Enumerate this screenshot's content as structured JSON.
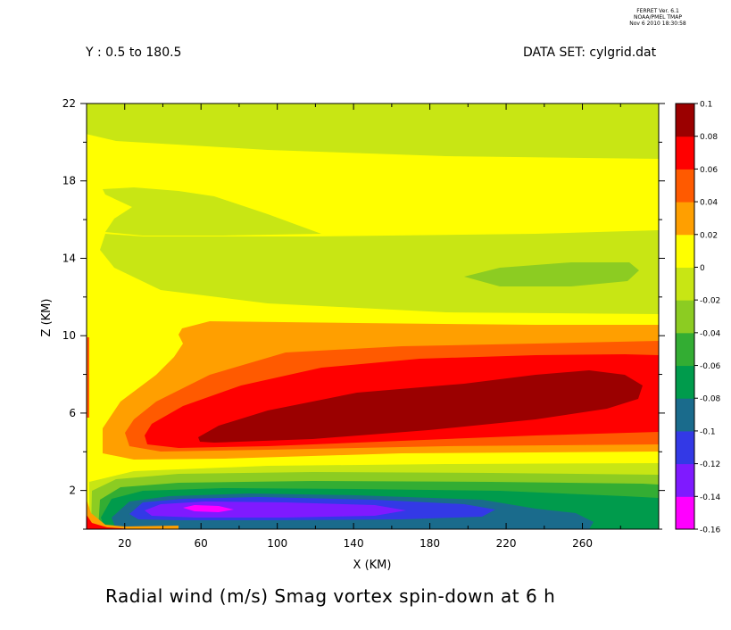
{
  "header": {
    "version_lines": [
      "FERRET Ver. 6.1",
      "NOAA/PMEL TMAP",
      "Nov  6 2010 18:30:58"
    ],
    "slice": "Y : 0.5 to 180.5",
    "dataset": "DATA SET: cylgrid.dat"
  },
  "chart_data": {
    "type": "contourf",
    "title": "Radial wind (m/s) Smag vortex spin-down at 6 h",
    "xlabel": "X (KM)",
    "ylabel": "Z (KM)",
    "xlim": [
      0,
      300
    ],
    "ylim": [
      0,
      22
    ],
    "xticks": [
      20,
      60,
      100,
      140,
      180,
      220,
      260
    ],
    "yticks": [
      2,
      6,
      10,
      14,
      18,
      22
    ],
    "colorbar": {
      "levels": [
        -0.16,
        -0.14,
        -0.12,
        -0.1,
        -0.08,
        -0.06,
        -0.04,
        -0.02,
        0,
        0.02,
        0.04,
        0.06,
        0.08,
        0.1
      ],
      "tick_labels": [
        "-0.16",
        "-0.14",
        "-0.12",
        "-0.1",
        "-0.08",
        "-0.06",
        "-0.04",
        "-0.02",
        "0",
        "0.02",
        "0.04",
        "0.06",
        "0.08",
        "0.1"
      ],
      "colors": [
        "#ff00ff",
        "#7f1aff",
        "#3339e6",
        "#1a6b8c",
        "#009b4c",
        "#33ad33",
        "#8ccc22",
        "#c8e614",
        "#ffff00",
        "#ff9f00",
        "#ff5a00",
        "#ff0000",
        "#9b0000"
      ]
    }
  }
}
